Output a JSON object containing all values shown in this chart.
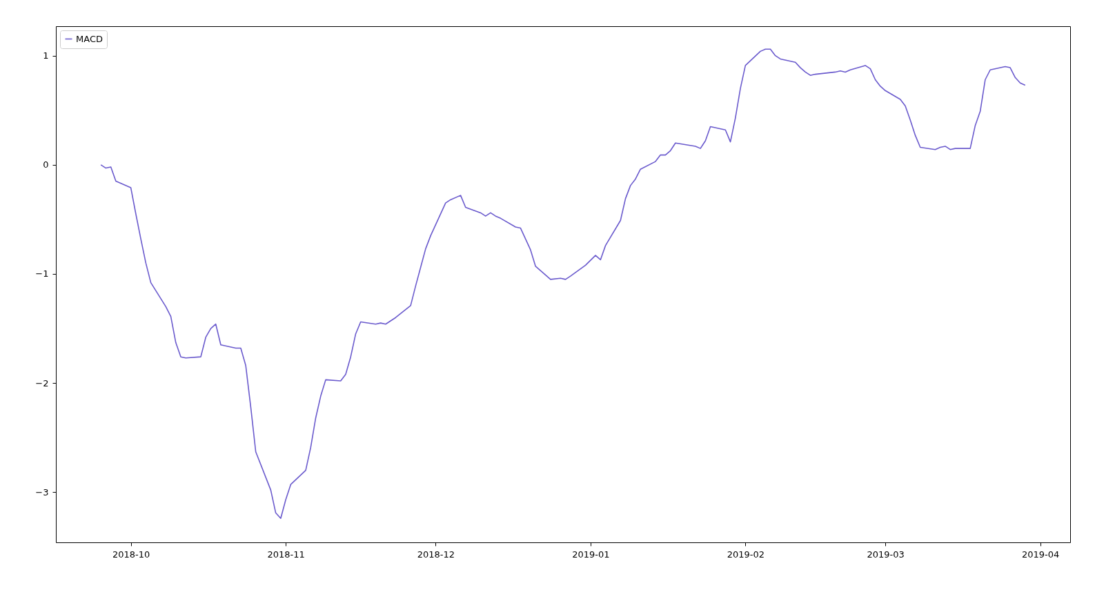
{
  "chart_data": {
    "type": "line",
    "legend": "top left",
    "marker": "none",
    "line_style": "solid",
    "grid": false,
    "xlim": [
      "2018-09-16",
      "2019-04-07"
    ],
    "xticks": [
      "2018-10",
      "2018-11",
      "2018-12",
      "2019-01",
      "2019-02",
      "2019-03",
      "2019-04"
    ],
    "ylim": [
      -3.46,
      1.27
    ],
    "yticks": [
      {
        "value": -3,
        "label": "−3"
      },
      {
        "value": -2,
        "label": "−2"
      },
      {
        "value": -1,
        "label": "−1"
      },
      {
        "value": 0,
        "label": "0"
      },
      {
        "value": 1,
        "label": "1"
      }
    ],
    "x": [
      "2018-09-25",
      "2018-09-26",
      "2018-09-27",
      "2018-09-28",
      "2018-10-01",
      "2018-10-02",
      "2018-10-03",
      "2018-10-04",
      "2018-10-05",
      "2018-10-08",
      "2018-10-09",
      "2018-10-10",
      "2018-10-11",
      "2018-10-12",
      "2018-10-15",
      "2018-10-16",
      "2018-10-17",
      "2018-10-18",
      "2018-10-19",
      "2018-10-22",
      "2018-10-23",
      "2018-10-24",
      "2018-10-25",
      "2018-10-26",
      "2018-10-29",
      "2018-10-30",
      "2018-10-31",
      "2018-11-01",
      "2018-11-02",
      "2018-11-05",
      "2018-11-06",
      "2018-11-07",
      "2018-11-08",
      "2018-11-09",
      "2018-11-12",
      "2018-11-13",
      "2018-11-14",
      "2018-11-15",
      "2018-11-16",
      "2018-11-19",
      "2018-11-20",
      "2018-11-21",
      "2018-11-23",
      "2018-11-26",
      "2018-11-27",
      "2018-11-28",
      "2018-11-29",
      "2018-11-30",
      "2018-12-03",
      "2018-12-04",
      "2018-12-06",
      "2018-12-07",
      "2018-12-10",
      "2018-12-11",
      "2018-12-12",
      "2018-12-13",
      "2018-12-14",
      "2018-12-17",
      "2018-12-18",
      "2018-12-19",
      "2018-12-20",
      "2018-12-21",
      "2018-12-24",
      "2018-12-26",
      "2018-12-27",
      "2018-12-28",
      "2018-12-31",
      "2019-01-02",
      "2019-01-03",
      "2019-01-04",
      "2019-01-07",
      "2019-01-08",
      "2019-01-09",
      "2019-01-10",
      "2019-01-11",
      "2019-01-14",
      "2019-01-15",
      "2019-01-16",
      "2019-01-17",
      "2019-01-18",
      "2019-01-22",
      "2019-01-23",
      "2019-01-24",
      "2019-01-25",
      "2019-01-28",
      "2019-01-29",
      "2019-01-30",
      "2019-01-31",
      "2019-02-01",
      "2019-02-04",
      "2019-02-05",
      "2019-02-06",
      "2019-02-07",
      "2019-02-08",
      "2019-02-11",
      "2019-02-12",
      "2019-02-13",
      "2019-02-14",
      "2019-02-15",
      "2019-02-19",
      "2019-02-20",
      "2019-02-21",
      "2019-02-22",
      "2019-02-25",
      "2019-02-26",
      "2019-02-27",
      "2019-02-28",
      "2019-03-01",
      "2019-03-04",
      "2019-03-05",
      "2019-03-06",
      "2019-03-07",
      "2019-03-08",
      "2019-03-11",
      "2019-03-12",
      "2019-03-13",
      "2019-03-14",
      "2019-03-15",
      "2019-03-18",
      "2019-03-19",
      "2019-03-20",
      "2019-03-21",
      "2019-03-22",
      "2019-03-25",
      "2019-03-26",
      "2019-03-27",
      "2019-03-28",
      "2019-03-29"
    ],
    "series": [
      {
        "name": "MACD",
        "color": "#6a5acd",
        "values": [
          0,
          -0.03,
          -0.02,
          -0.15,
          -0.21,
          -0.45,
          -0.68,
          -0.9,
          -1.08,
          -1.3,
          -1.39,
          -1.63,
          -1.76,
          -1.77,
          -1.76,
          -1.58,
          -1.5,
          -1.46,
          -1.65,
          -1.68,
          -1.68,
          -1.84,
          -2.22,
          -2.63,
          -2.98,
          -3.19,
          -3.24,
          -3.07,
          -2.93,
          -2.8,
          -2.59,
          -2.32,
          -2.12,
          -1.97,
          -1.98,
          -1.92,
          -1.76,
          -1.55,
          -1.44,
          -1.46,
          -1.45,
          -1.46,
          -1.4,
          -1.29,
          -1.11,
          -0.94,
          -0.77,
          -0.65,
          -0.35,
          -0.32,
          -0.28,
          -0.39,
          -0.44,
          -0.47,
          -0.44,
          -0.47,
          -0.49,
          -0.57,
          -0.58,
          -0.68,
          -0.78,
          -0.93,
          -1.05,
          -1.04,
          -1.05,
          -1.02,
          -0.92,
          -0.83,
          -0.87,
          -0.74,
          -0.51,
          -0.31,
          -0.19,
          -0.13,
          -0.04,
          0.03,
          0.09,
          0.09,
          0.13,
          0.2,
          0.17,
          0.15,
          0.22,
          0.35,
          0.32,
          0.21,
          0.43,
          0.7,
          0.91,
          1.04,
          1.06,
          1.06,
          1.0,
          0.97,
          0.94,
          0.89,
          0.85,
          0.82,
          0.83,
          0.85,
          0.86,
          0.85,
          0.87,
          0.91,
          0.88,
          0.78,
          0.72,
          0.68,
          0.6,
          0.54,
          0.41,
          0.27,
          0.16,
          0.14,
          0.16,
          0.17,
          0.14,
          0.15,
          0.15,
          0.36,
          0.49,
          0.78,
          0.87,
          0.9,
          0.89,
          0.8,
          0.75,
          0.73
        ]
      }
    ]
  }
}
